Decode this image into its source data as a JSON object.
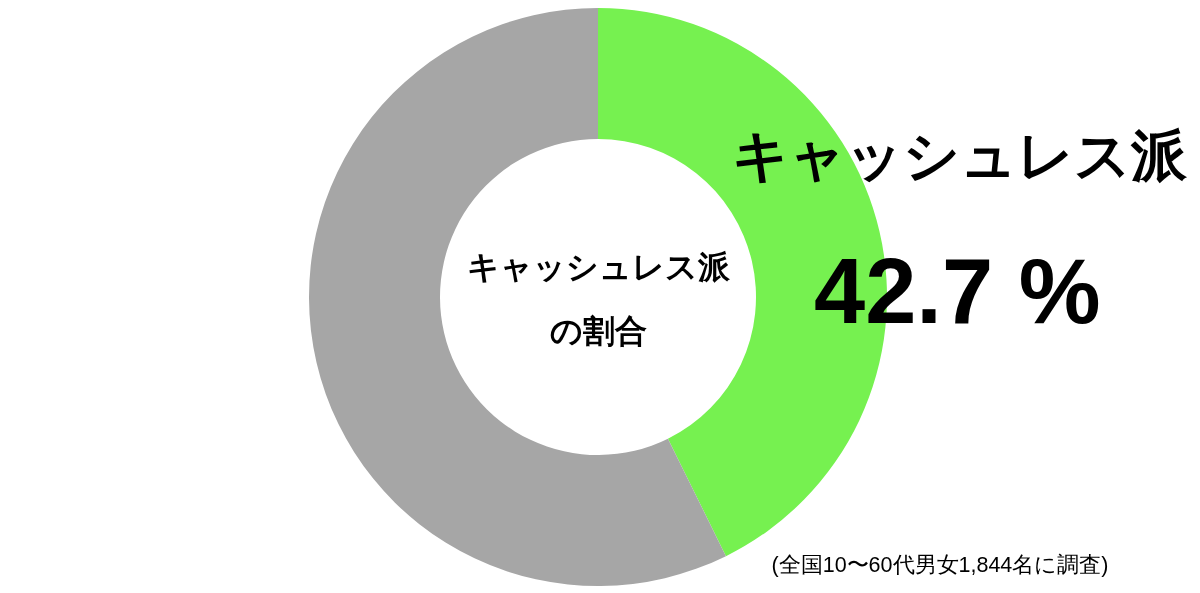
{
  "chart_data": {
    "type": "donut",
    "title": "キャッシュレス派の割合",
    "categories": [
      "キャッシュレス派",
      null
    ],
    "values": [
      42.7,
      57.3
    ],
    "colors": [
      "#76f150",
      "#a6a6a6"
    ],
    "value_labels": [
      "42.7 %",
      null
    ],
    "annotations": [
      "(全国10〜60代男女1,844名に調査)"
    ]
  }
}
